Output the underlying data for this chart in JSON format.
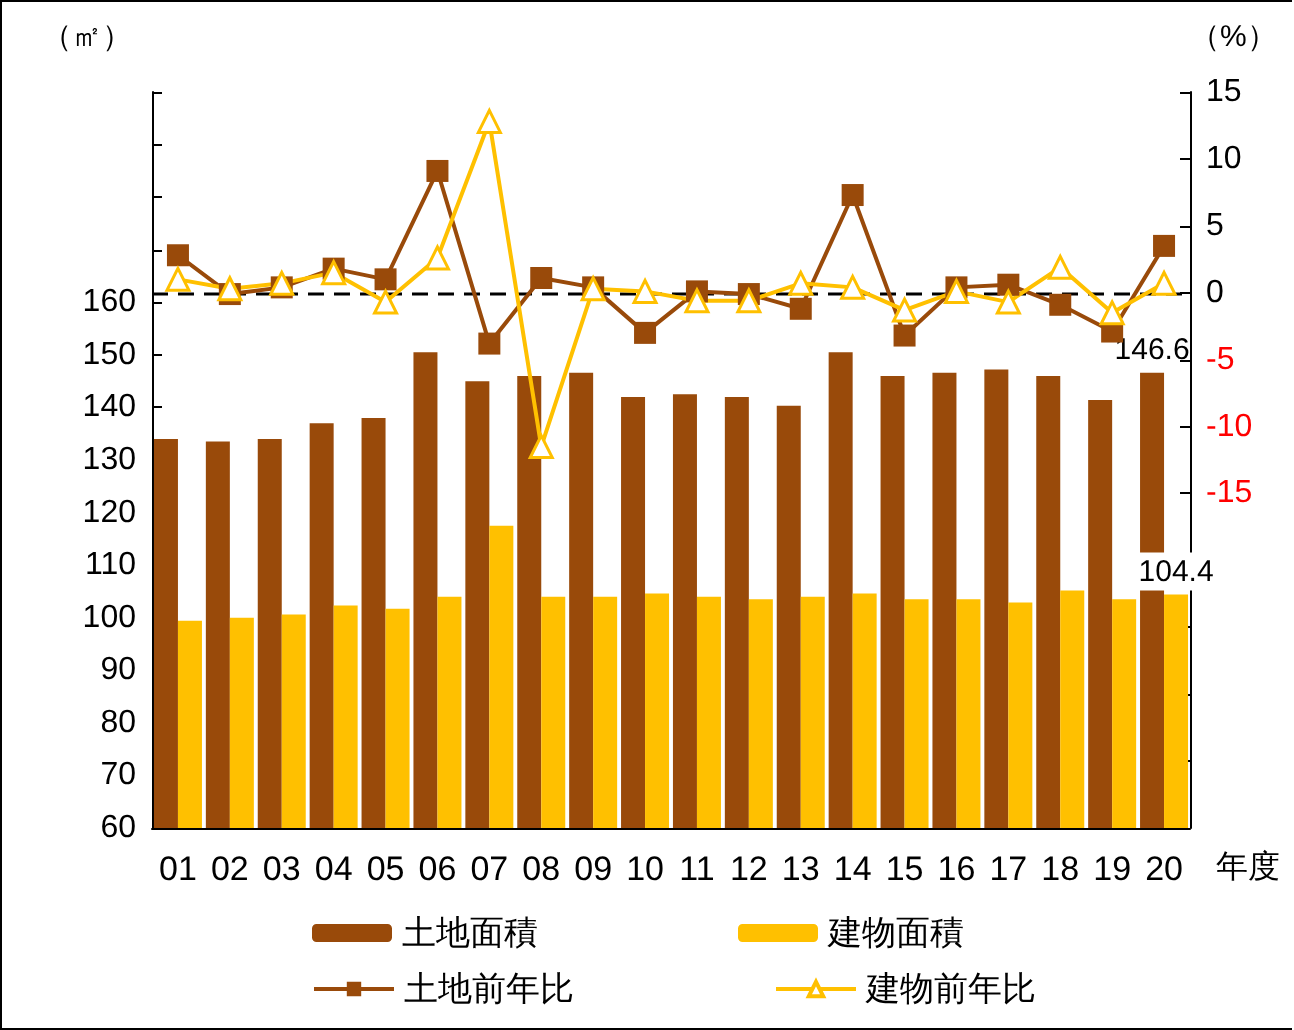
{
  "chart_data": {
    "type": "bar",
    "categories": [
      "01",
      "02",
      "03",
      "04",
      "05",
      "06",
      "07",
      "08",
      "09",
      "10",
      "11",
      "12",
      "13",
      "14",
      "15",
      "16",
      "17",
      "18",
      "19",
      "20"
    ],
    "xlabel": "年度",
    "ylabel": "（㎡）",
    "y2label": "（%）",
    "ylim": [
      60,
      200
    ],
    "yticks": [
      60,
      70,
      80,
      90,
      100,
      110,
      120,
      130,
      140,
      150,
      160,
      {
        "value": 170,
        "label": null
      },
      {
        "value": 180,
        "label": null
      },
      {
        "value": 190,
        "label": null
      },
      {
        "value": 200,
        "label": null
      }
    ],
    "y2lim": [
      -40,
      15
    ],
    "y2ticks": [
      {
        "value": -40,
        "label": null
      },
      {
        "value": -35,
        "label": null
      },
      {
        "value": -30,
        "label": null
      },
      {
        "value": -25,
        "label": null
      },
      {
        "value": -20,
        "label": null
      },
      -15,
      -10,
      -5,
      0,
      5,
      10,
      15
    ],
    "series": [
      {
        "name": "土地面積",
        "type": "bar",
        "color": "#994a0a",
        "values": [
          134,
          133.5,
          134,
          137,
          138,
          150.5,
          145,
          146,
          146.6,
          142,
          142.5,
          142,
          140.3,
          150.5,
          146,
          146.6,
          147.2,
          146,
          141.4,
          146.6
        ],
        "value_labels": [
          null,
          null,
          null,
          null,
          null,
          null,
          null,
          null,
          null,
          null,
          null,
          null,
          null,
          null,
          null,
          null,
          null,
          null,
          null,
          "146.6"
        ]
      },
      {
        "name": "建物面積",
        "type": "bar",
        "color": "#ffc000",
        "values": [
          99.4,
          100,
          100.6,
          102.3,
          101.7,
          104,
          117.5,
          104,
          104,
          104.6,
          104,
          103.5,
          104,
          104.6,
          103.5,
          103.5,
          102.9,
          105.2,
          103.5,
          104.4
        ],
        "value_labels": [
          null,
          null,
          null,
          null,
          null,
          null,
          null,
          null,
          null,
          null,
          null,
          null,
          null,
          null,
          null,
          null,
          null,
          null,
          null,
          "104.4"
        ]
      },
      {
        "name": "土地前年比",
        "type": "line",
        "axis": "y2",
        "marker": "square",
        "color": "#994a0a",
        "values": [
          2.8,
          -0.1,
          0.4,
          1.8,
          1.0,
          9.1,
          -3.8,
          1.1,
          0.4,
          -3.0,
          0.1,
          -0.1,
          -1.2,
          7.3,
          -3.2,
          0.4,
          0.6,
          -0.9,
          -2.9,
          3.5
        ]
      },
      {
        "name": "建物前年比",
        "type": "line",
        "axis": "y2",
        "marker": "triangle",
        "color": "#ffc000",
        "values": [
          1.0,
          0.3,
          0.7,
          1.5,
          -0.7,
          2.6,
          12.8,
          -11.5,
          0.3,
          0.1,
          -0.6,
          -0.6,
          0.7,
          0.4,
          -1.3,
          0.1,
          -0.7,
          1.9,
          -1.5,
          0.7
        ]
      }
    ],
    "ref_lines": [
      {
        "axis": "y2",
        "value": 0,
        "label": null,
        "color": "#000000",
        "line_style": "dashed"
      }
    ],
    "legend": "bottom",
    "grid": false
  }
}
